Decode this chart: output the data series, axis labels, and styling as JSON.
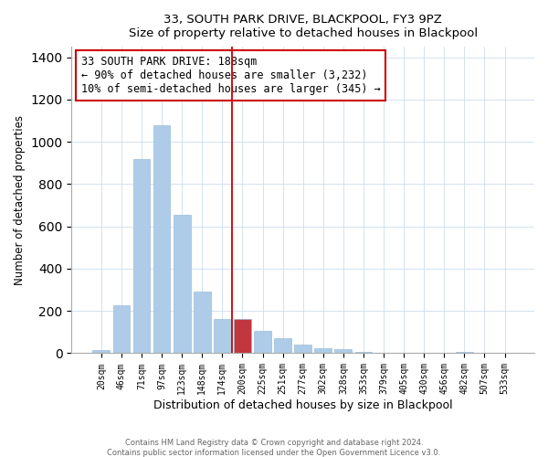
{
  "title": "33, SOUTH PARK DRIVE, BLACKPOOL, FY3 9PZ",
  "subtitle": "Size of property relative to detached houses in Blackpool",
  "xlabel": "Distribution of detached houses by size in Blackpool",
  "ylabel": "Number of detached properties",
  "bar_labels": [
    "20sqm",
    "46sqm",
    "71sqm",
    "97sqm",
    "123sqm",
    "148sqm",
    "174sqm",
    "200sqm",
    "225sqm",
    "251sqm",
    "277sqm",
    "302sqm",
    "328sqm",
    "353sqm",
    "379sqm",
    "405sqm",
    "430sqm",
    "456sqm",
    "482sqm",
    "507sqm",
    "533sqm"
  ],
  "bar_heights": [
    15,
    228,
    918,
    1080,
    655,
    293,
    160,
    160,
    107,
    70,
    40,
    25,
    20,
    5,
    0,
    0,
    0,
    0,
    8,
    0,
    0
  ],
  "bar_color_normal": "#aecce8",
  "bar_color_highlight": "#c0373f",
  "highlight_index": 7,
  "vline_color": "#cc0000",
  "annotation_title": "33 SOUTH PARK DRIVE: 188sqm",
  "annotation_line1": "← 90% of detached houses are smaller (3,232)",
  "annotation_line2": "10% of semi-detached houses are larger (345) →",
  "annotation_box_edge": "#cc0000",
  "ylim": [
    0,
    1450
  ],
  "footer1": "Contains HM Land Registry data © Crown copyright and database right 2024.",
  "footer2": "Contains public sector information licensed under the Open Government Licence v3.0."
}
